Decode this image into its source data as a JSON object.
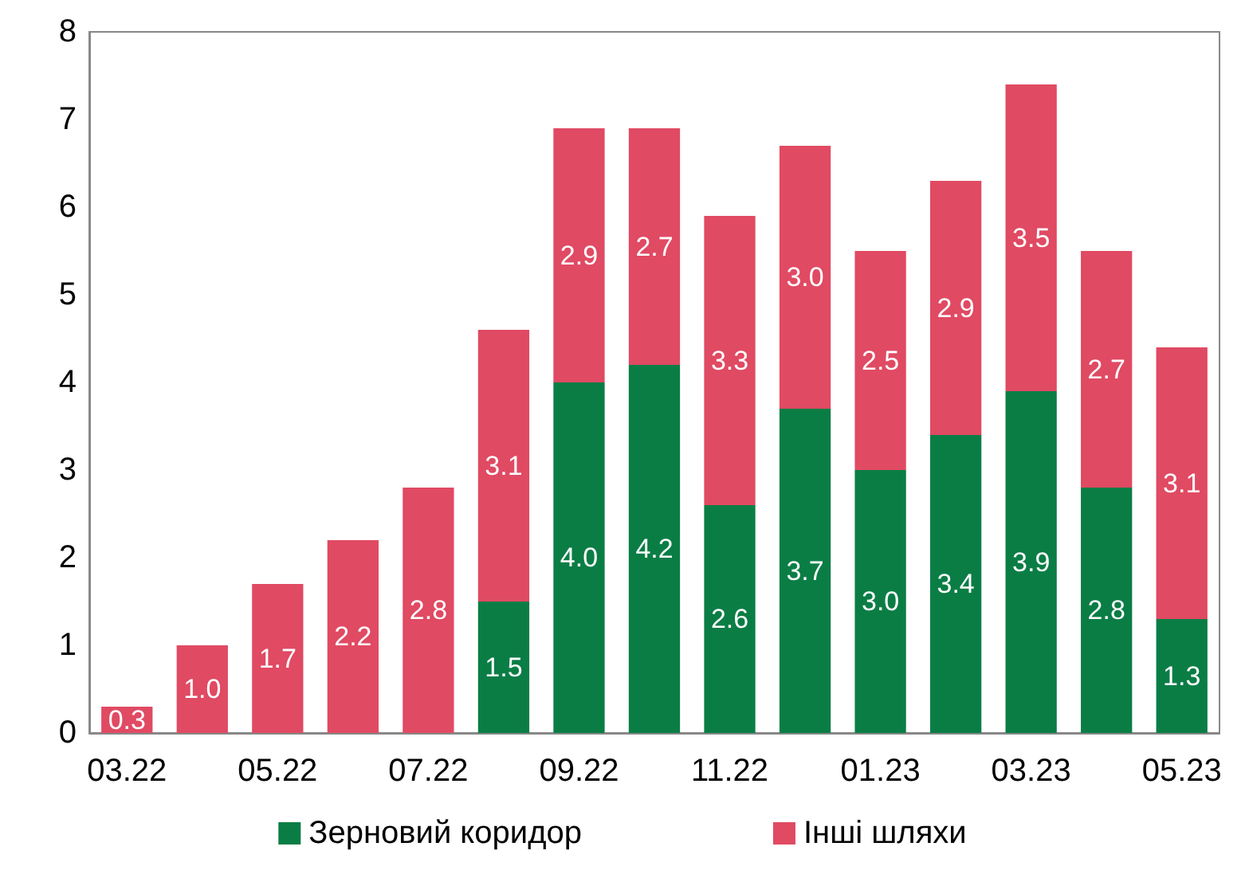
{
  "chart_data": {
    "type": "bar",
    "stacked": true,
    "categories": [
      "03.22",
      null,
      "05.22",
      null,
      "07.22",
      null,
      "09.22",
      null,
      "11.22",
      null,
      "01.23",
      null,
      "03.23",
      null,
      "05.23"
    ],
    "series": [
      {
        "name": "Зерновий коридор",
        "color": "#0a7d45",
        "values": [
          null,
          null,
          null,
          null,
          null,
          1.5,
          4.0,
          4.2,
          2.6,
          3.7,
          3.0,
          3.4,
          3.9,
          2.8,
          1.3
        ],
        "value_labels": [
          null,
          null,
          null,
          null,
          null,
          "1.5",
          "4.0",
          "4.2",
          "2.6",
          "3.7",
          "3.0",
          "3.4",
          "3.9",
          "2.8",
          "1.3"
        ]
      },
      {
        "name": "Інші шляхи",
        "color": "#e04a63",
        "values": [
          0.3,
          1.0,
          1.7,
          2.2,
          2.8,
          3.1,
          2.9,
          2.7,
          3.3,
          3.0,
          2.5,
          2.9,
          3.5,
          2.7,
          3.1
        ],
        "value_labels": [
          "0.3",
          "1.0",
          "1.7",
          "2.2",
          "2.8",
          "3.1",
          "2.9",
          "2.7",
          "3.3",
          "3.0",
          "2.5",
          "2.9",
          "3.5",
          "2.7",
          "3.1"
        ]
      }
    ],
    "ylim": [
      0,
      8
    ],
    "yticks": [
      0,
      1,
      2,
      3,
      4,
      5,
      6,
      7,
      8
    ],
    "grid": false,
    "legend": "bottom"
  }
}
